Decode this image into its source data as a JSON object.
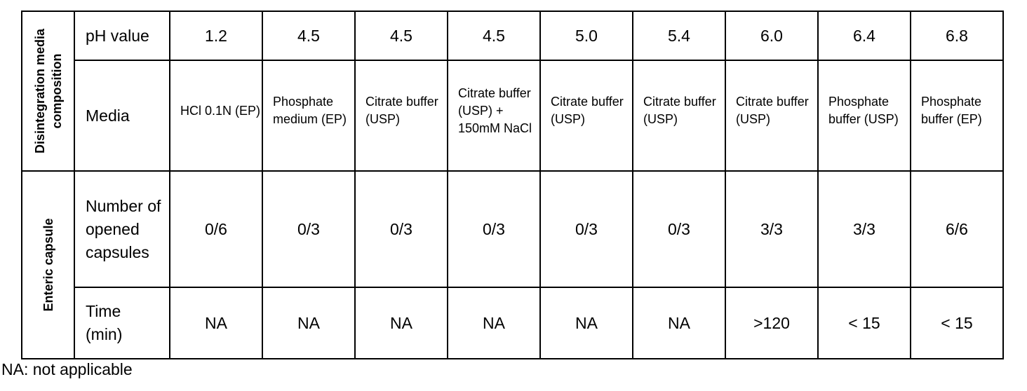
{
  "groups": {
    "media_composition": "Disintegration media composition",
    "enteric": "Enteric capsule"
  },
  "row_labels": {
    "ph": "pH value",
    "media": "Media",
    "opened": "Number of opened capsules",
    "time": "Time (min)"
  },
  "ph": [
    "1.2",
    "4.5",
    "4.5",
    "4.5",
    "5.0",
    "5.4",
    "6.0",
    "6.4",
    "6.8"
  ],
  "media": [
    "HCl 0.1N (EP)",
    "Phosphate medium (EP)",
    "Citrate buffer (USP)",
    "Citrate buffer (USP) + 150mM NaCl",
    "Citrate buffer (USP)",
    "Citrate buffer (USP)",
    "Citrate buffer (USP)",
    "Phosphate buffer (USP)",
    "Phosphate buffer (EP)"
  ],
  "opened": [
    "0/6",
    "0/3",
    "0/3",
    "0/3",
    "0/3",
    "0/3",
    "3/3",
    "3/3",
    "6/6"
  ],
  "time": [
    "NA",
    "NA",
    "NA",
    "NA",
    "NA",
    "NA",
    ">120",
    "< 15",
    "< 15"
  ],
  "footnote": "NA: not applicable"
}
